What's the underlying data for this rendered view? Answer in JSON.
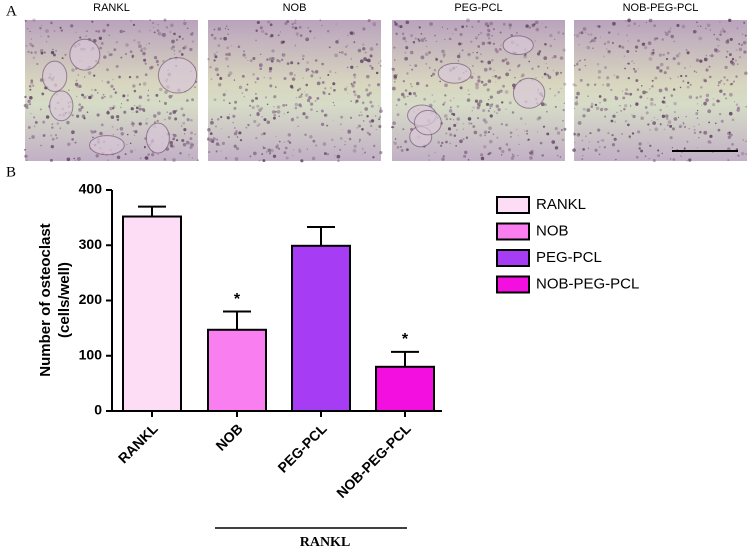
{
  "panel_a": {
    "label": "A",
    "images": [
      "RANKL",
      "NOB",
      "PEG-PCL",
      "NOB-PEG-PCL"
    ]
  },
  "chart_data": {
    "type": "bar",
    "panel_label": "B",
    "ylabel": [
      "Number of osteoclast",
      "(cells/well)"
    ],
    "categories": [
      "RANKL",
      "NOB",
      "PEG-PCL",
      "NOB-PEG-PCL"
    ],
    "values": [
      352,
      147,
      299,
      80
    ],
    "errors": [
      18,
      33,
      34,
      27
    ],
    "significance": [
      null,
      "*",
      null,
      "*"
    ],
    "colors": [
      "#fddcf5",
      "#f97ef0",
      "#a63cf4",
      "#f30fe0"
    ],
    "ylim": [
      0,
      400
    ],
    "yticks": [
      0,
      100,
      200,
      300,
      400
    ],
    "group_label": "RANKL",
    "legend": true
  }
}
